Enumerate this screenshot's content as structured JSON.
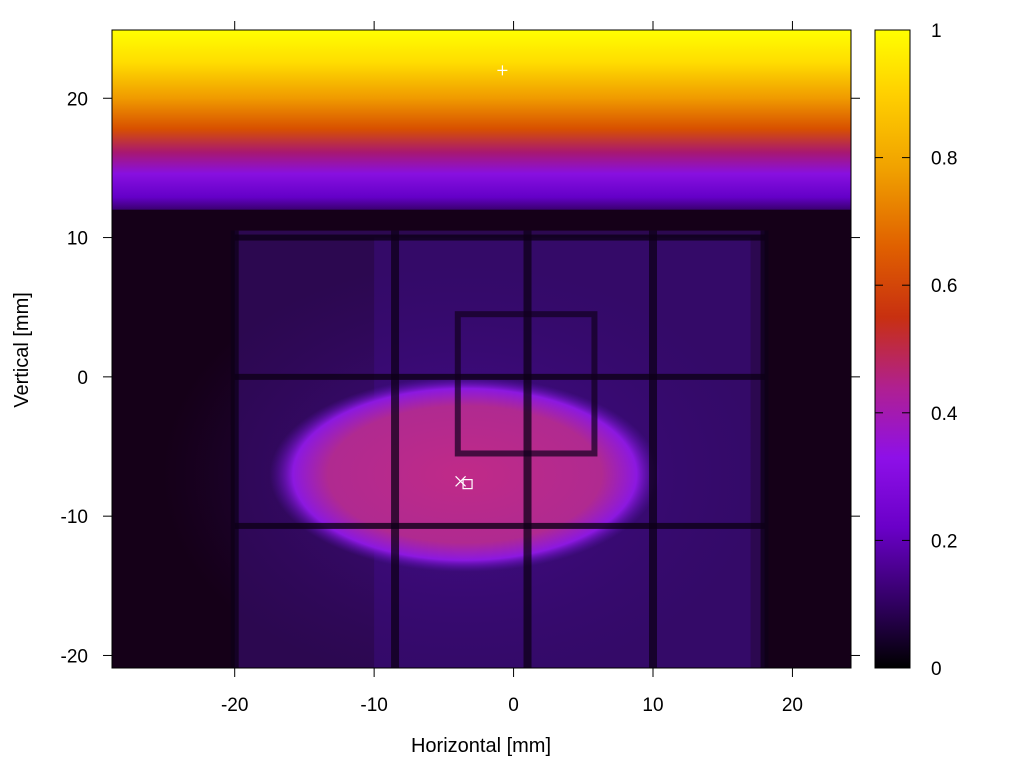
{
  "chart_data": {
    "type": "heatmap",
    "title": "",
    "xlabel": "Horizontal [mm]",
    "ylabel": "Vertical [mm]",
    "xlim": [
      -28.8,
      24.2
    ],
    "ylim": [
      -20.9,
      24.9
    ],
    "x_ticks": [
      -20,
      -10,
      0,
      10,
      20
    ],
    "y_ticks": [
      -20,
      -10,
      0,
      10,
      20
    ],
    "colorbar": {
      "range": [
        0,
        1
      ],
      "ticks": [
        0,
        0.2,
        0.4,
        0.6,
        0.8,
        1
      ],
      "tick_labels": [
        "0",
        "0.2",
        "0.4",
        "0.6",
        "0.8",
        "1"
      ],
      "colormap": [
        "#000000",
        "#300060",
        "#6a00c8",
        "#8e10e8",
        "#b02090",
        "#c83010",
        "#e06000",
        "#f0a000",
        "#ffd000",
        "#ffff00"
      ]
    },
    "features": {
      "top_band": {
        "y_range": [
          12,
          24.9
        ],
        "value_top": 1.0,
        "value_bottom": 0.25
      },
      "background_level": 0.1,
      "beam_spot": {
        "center": [
          -3.5,
          -7
        ],
        "half_width": 14,
        "half_height": 7,
        "value": 0.45
      },
      "grid_lines_x": [
        -20,
        -8.5,
        1,
        10,
        18
      ],
      "grid_lines_y": [
        10,
        0,
        -10.7
      ],
      "inner_box": {
        "x_range": [
          -4,
          5.8
        ],
        "y_range": [
          -5.5,
          4.5
        ]
      }
    },
    "markers": [
      {
        "symbol": "plus",
        "x": -0.8,
        "y": 22
      },
      {
        "symbol": "cross",
        "x": -3.8,
        "y": -7.5
      },
      {
        "symbol": "square",
        "x": -3.3,
        "y": -7.7
      }
    ]
  }
}
